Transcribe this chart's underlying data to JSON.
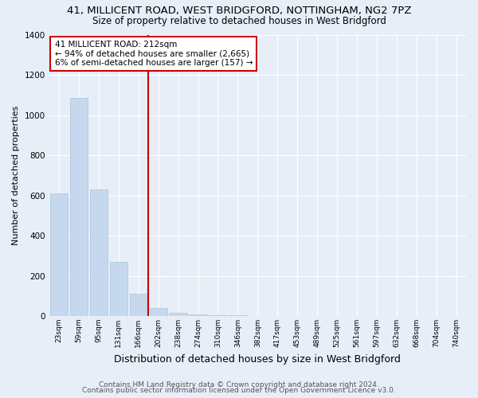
{
  "title": "41, MILLICENT ROAD, WEST BRIDGFORD, NOTTINGHAM, NG2 7PZ",
  "subtitle": "Size of property relative to detached houses in West Bridgford",
  "xlabel": "Distribution of detached houses by size in West Bridgford",
  "ylabel": "Number of detached properties",
  "bar_labels": [
    "23sqm",
    "59sqm",
    "95sqm",
    "131sqm",
    "166sqm",
    "202sqm",
    "238sqm",
    "274sqm",
    "310sqm",
    "346sqm",
    "382sqm",
    "417sqm",
    "453sqm",
    "489sqm",
    "525sqm",
    "561sqm",
    "597sqm",
    "632sqm",
    "668sqm",
    "704sqm",
    "740sqm"
  ],
  "bar_values": [
    610,
    1085,
    630,
    270,
    110,
    38,
    17,
    8,
    5,
    3,
    2,
    1,
    1,
    1,
    0,
    0,
    0,
    0,
    0,
    0,
    0
  ],
  "bar_color": "#c5d8ed",
  "bar_edge_color": "#a8c4dc",
  "background_color": "#e8eef8",
  "grid_color": "#ffffff",
  "annotation_text_line1": "41 MILLICENT ROAD: 212sqm",
  "annotation_text_line2": "← 94% of detached houses are smaller (2,665)",
  "annotation_text_line3": "6% of semi-detached houses are larger (157) →",
  "red_line_color": "#cc0000",
  "annotation_box_color": "#ffffff",
  "annotation_box_edge": "#cc0000",
  "ylim": [
    0,
    1400
  ],
  "yticks": [
    0,
    200,
    400,
    600,
    800,
    1000,
    1200,
    1400
  ],
  "red_line_bar_index": 5,
  "footer_line1": "Contains HM Land Registry data © Crown copyright and database right 2024.",
  "footer_line2": "Contains public sector information licensed under the Open Government Licence v3.0.",
  "title_fontsize": 9.5,
  "subtitle_fontsize": 8.5,
  "xlabel_fontsize": 9,
  "ylabel_fontsize": 8,
  "annotation_fontsize": 7.5,
  "tick_label_fontsize": 6.5,
  "footer_fontsize": 6.5
}
